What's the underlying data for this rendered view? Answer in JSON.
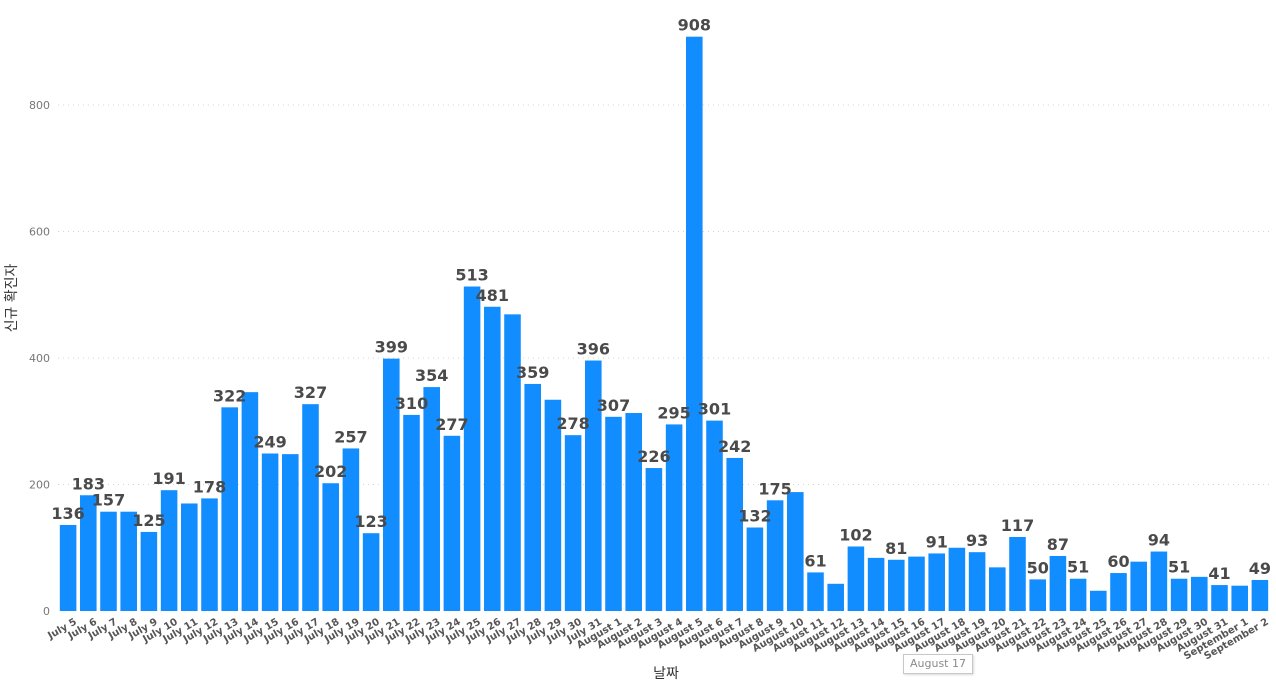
{
  "chart_data": {
    "type": "bar",
    "title": "",
    "xlabel": "날짜",
    "ylabel": "신규 확진자",
    "ylim": [
      0,
      920
    ],
    "yticks": [
      0,
      200,
      400,
      600,
      800
    ],
    "grid": true,
    "categories": [
      "July 5",
      "July 6",
      "July 7",
      "July 8",
      "July 9",
      "July 10",
      "July 11",
      "July 12",
      "July 13",
      "July 14",
      "July 15",
      "July 16",
      "July 17",
      "July 18",
      "July 19",
      "July 20",
      "July 21",
      "July 22",
      "July 23",
      "July 24",
      "July 25",
      "July 26",
      "July 27",
      "July 28",
      "July 29",
      "July 30",
      "July 31",
      "August 1",
      "August 2",
      "August 3",
      "August 4",
      "August 5",
      "August 6",
      "August 7",
      "August 8",
      "August 9",
      "August 10",
      "August 11",
      "August 12",
      "August 13",
      "August 14",
      "August 15",
      "August 16",
      "August 17",
      "August 18",
      "August 19",
      "August 20",
      "August 21",
      "August 22",
      "August 23",
      "August 24",
      "August 25",
      "August 26",
      "August 27",
      "August 28",
      "August 29",
      "August 30",
      "August 31",
      "September 1",
      "September 2"
    ],
    "values": [
      136,
      183,
      157,
      157,
      125,
      191,
      170,
      178,
      322,
      346,
      249,
      248,
      327,
      202,
      257,
      123,
      399,
      310,
      354,
      277,
      513,
      481,
      469,
      359,
      334,
      278,
      396,
      307,
      313,
      226,
      295,
      908,
      301,
      242,
      132,
      175,
      188,
      61,
      43,
      102,
      84,
      81,
      86,
      91,
      100,
      93,
      69,
      117,
      50,
      87,
      51,
      32,
      60,
      78,
      94,
      51,
      54,
      41,
      40,
      49
    ],
    "labels": [
      "136",
      "183",
      "157",
      "",
      "125",
      "191",
      "",
      "178",
      "322",
      "",
      "249",
      "",
      "327",
      "202",
      "257",
      "123",
      "399",
      "310",
      "354",
      "277",
      "513",
      "481",
      "",
      "359",
      "",
      "278",
      "396",
      "307",
      "",
      "226",
      "295",
      "908",
      "301",
      "242",
      "132",
      "175",
      "",
      "61",
      "",
      "102",
      "",
      "81",
      "",
      "91",
      "",
      "93",
      "",
      "117",
      "50",
      "87",
      "51",
      "",
      "60",
      "",
      "94",
      "51",
      "",
      "41",
      "",
      "49"
    ]
  },
  "tooltip": {
    "text": "August 17"
  },
  "colors": {
    "bar": "#118dff"
  }
}
